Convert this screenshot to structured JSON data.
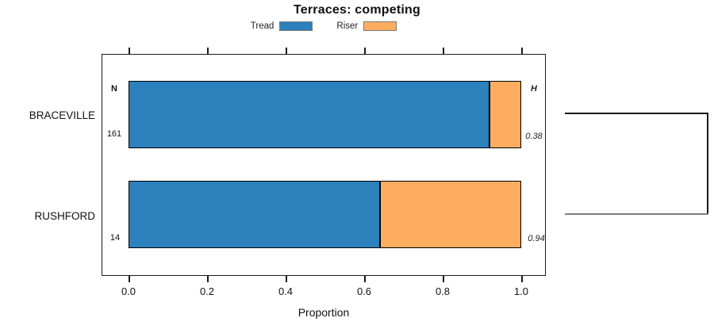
{
  "chart_data": {
    "type": "bar",
    "variant": "horizontal-stacked-proportion",
    "title": "Terraces: competing",
    "xlabel": "Proportion",
    "xlim": [
      0,
      1
    ],
    "x_ticks": [
      0,
      0.2,
      0.4,
      0.6,
      0.8,
      1
    ],
    "x_tick_labels": [
      "0.0",
      "0.2",
      "0.4",
      "0.6",
      "0.8",
      "1.0"
    ],
    "grid": false,
    "legend_position": "top",
    "categories": [
      "BRACEVILLE",
      "RUSHFORD"
    ],
    "series": [
      {
        "name": "Tread",
        "color": "#2C80BC",
        "values": [
          0.92,
          0.64
        ]
      },
      {
        "name": "Riser",
        "color": "#FCAD60",
        "values": [
          0.08,
          0.36
        ]
      }
    ],
    "column_headers": {
      "n": "N",
      "h": "H"
    },
    "rows": [
      {
        "label": "BRACEVILLE",
        "n": "161",
        "h": "0.38",
        "tread": 0.92,
        "riser": 0.08
      },
      {
        "label": "RUSHFORD",
        "n": "14",
        "h": "0.94",
        "tread": 0.64,
        "riser": 0.36
      }
    ],
    "annotations": [
      {
        "type": "bracket",
        "side": "right",
        "connects": [
          "BRACEVILLE",
          "RUSHFORD"
        ]
      }
    ],
    "colors": {
      "tread": "#2C80BC",
      "riser": "#FCAD60",
      "bar_border": "#000000",
      "box_border": "#1a1a1a"
    }
  }
}
